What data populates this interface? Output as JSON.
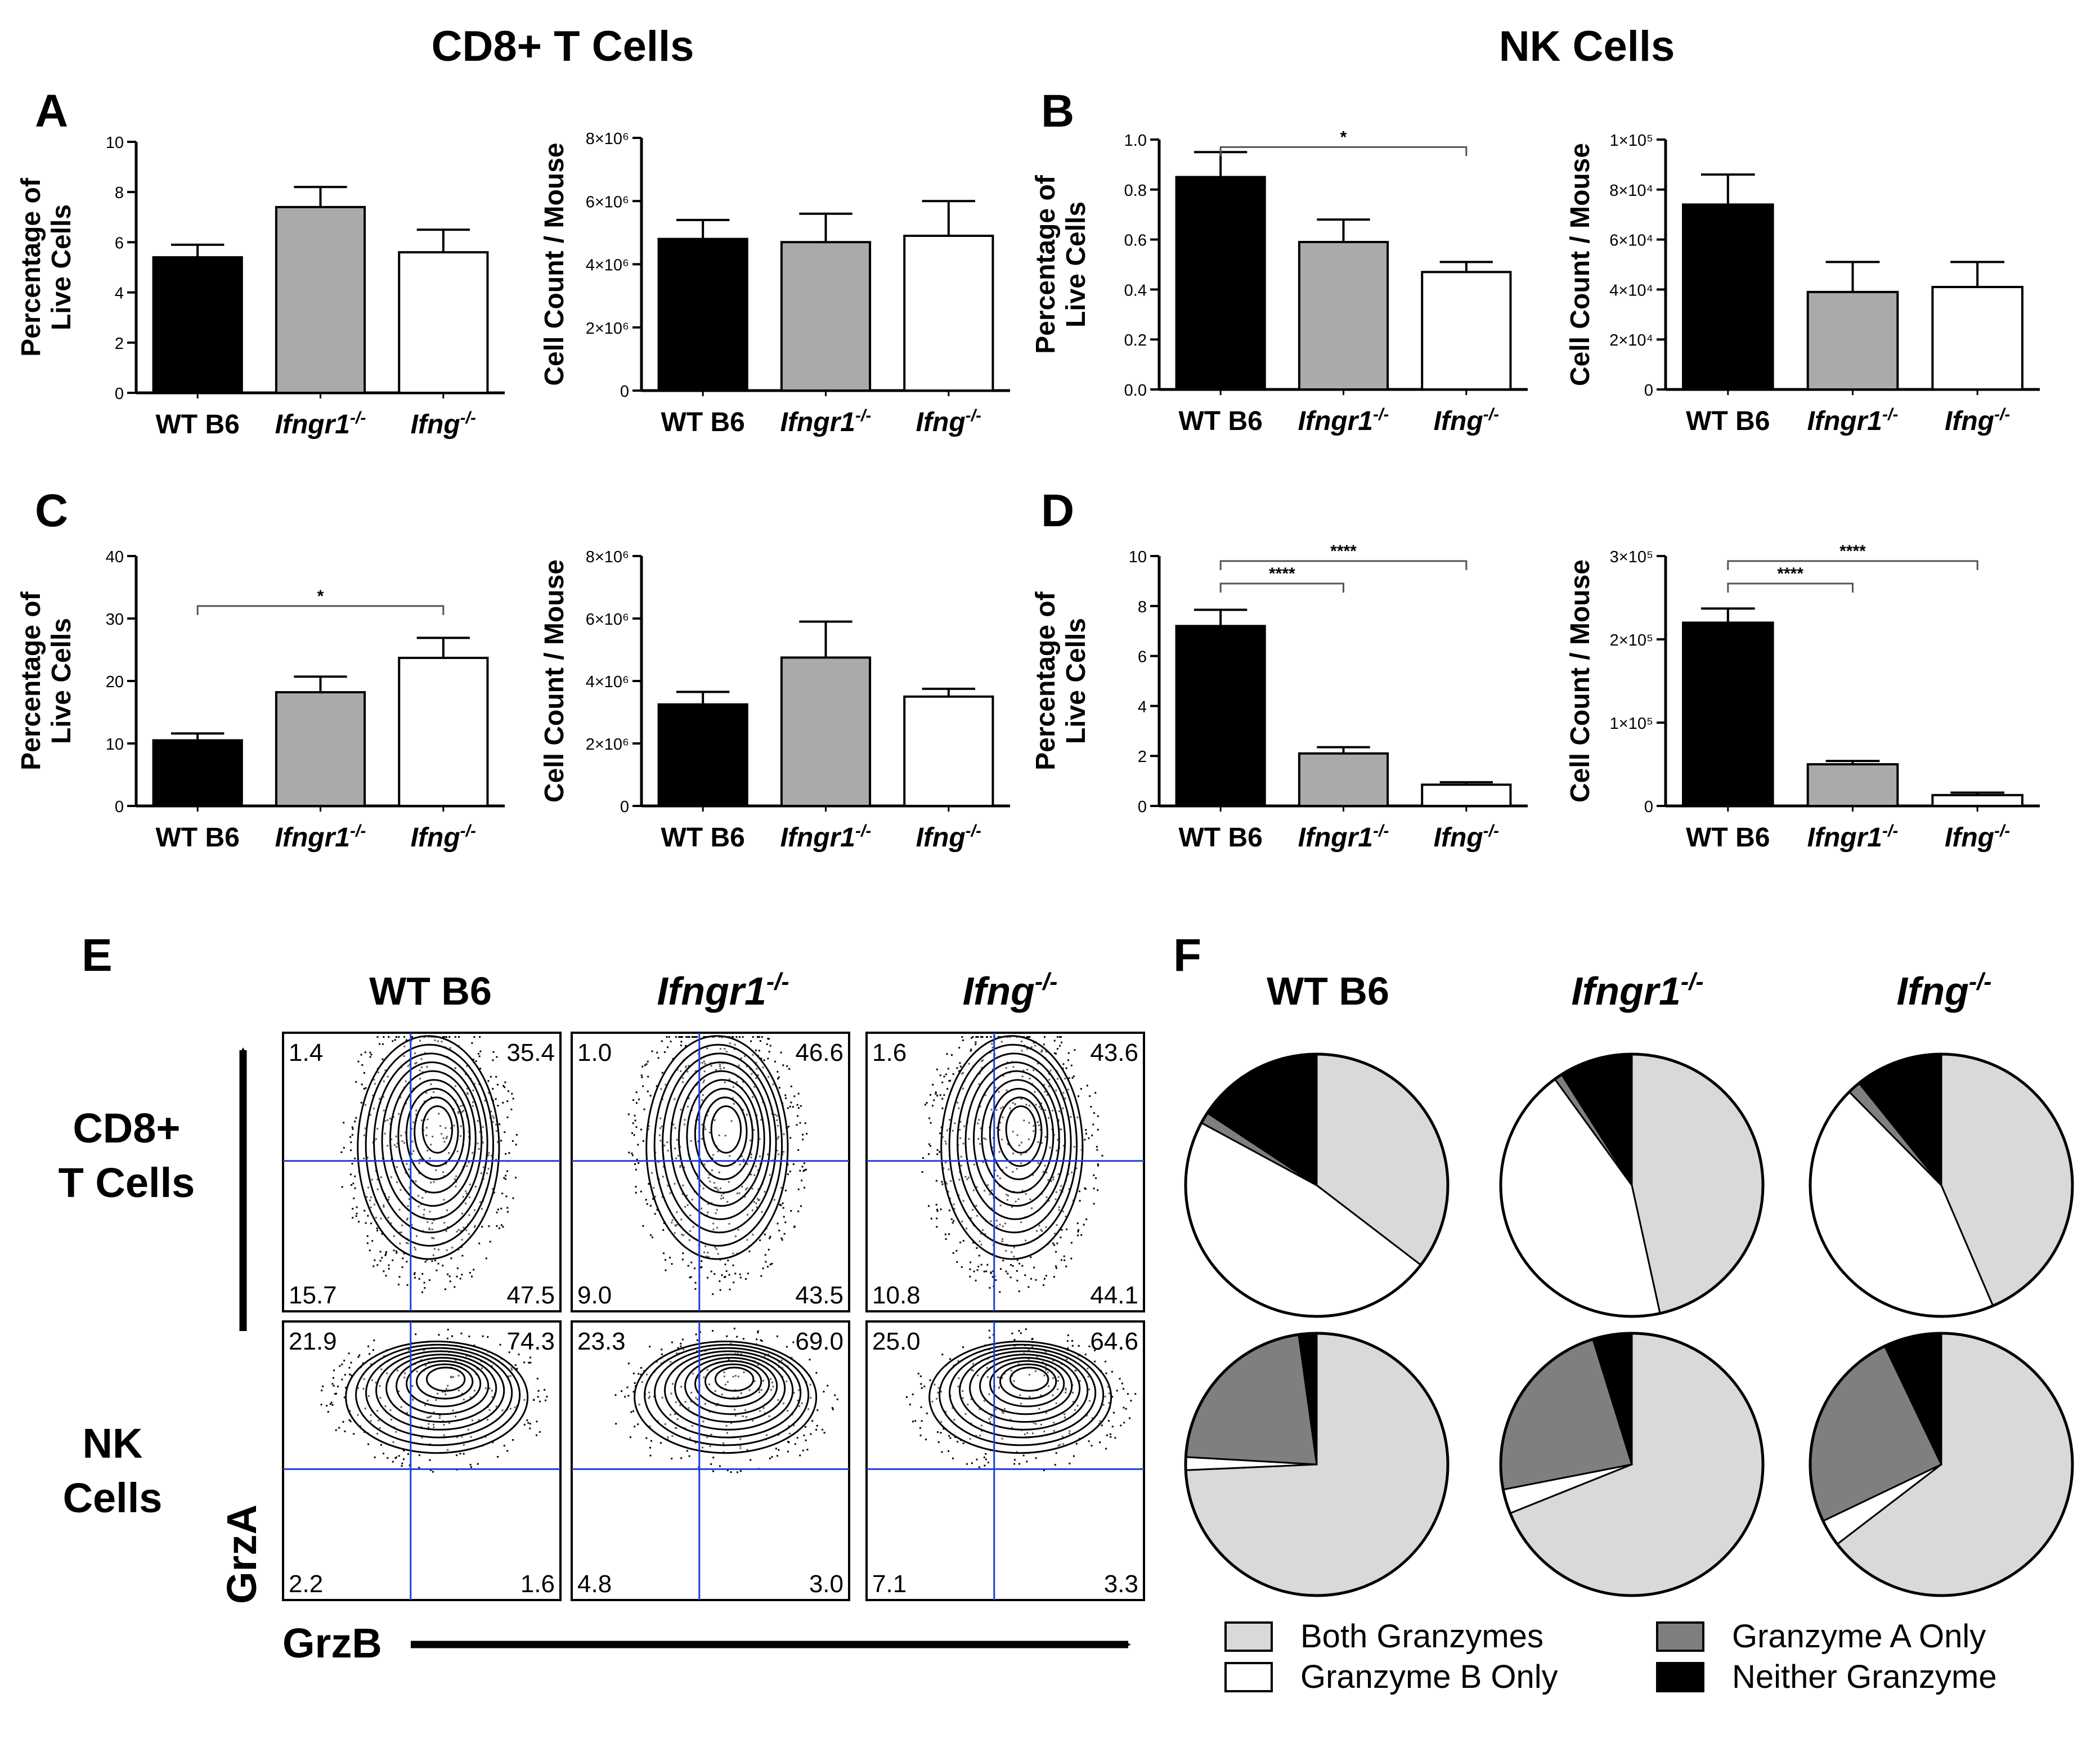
{
  "headers": {
    "cd8": "CD8+ T Cells",
    "nk": "NK Cells"
  },
  "genotypes": [
    "WT B6",
    "Ifngr1",
    "Ifng"
  ],
  "genotype_sup": "-/-",
  "chart_data": [
    {
      "panel": "A",
      "type": "bar",
      "cell_type": "CD8+ T Cells",
      "ylabel": [
        "Percentage of",
        "Live Cells"
      ],
      "categories": [
        "WT B6",
        "Ifngr1-/-",
        "Ifng-/-"
      ],
      "values": [
        5.4,
        7.4,
        5.6
      ],
      "errors": [
        0.5,
        0.8,
        0.9
      ],
      "ylim": [
        0,
        10
      ],
      "ticks": [
        "0",
        "2",
        "4",
        "6",
        "8",
        "10"
      ],
      "significance": []
    },
    {
      "panel": "A",
      "type": "bar",
      "cell_type": "CD8+ T Cells",
      "ylabel": [
        "Cell Count / Mouse"
      ],
      "categories": [
        "WT B6",
        "Ifngr1-/-",
        "Ifng-/-"
      ],
      "values": [
        4800000,
        4700000,
        4900000
      ],
      "errors": [
        600000,
        900000,
        1100000
      ],
      "ylim": [
        0,
        8000000
      ],
      "ticks": [
        "0",
        "2×10⁶",
        "4×10⁶",
        "6×10⁶",
        "8×10⁶"
      ],
      "significance": []
    },
    {
      "panel": "B",
      "type": "bar",
      "cell_type": "NK Cells",
      "ylabel": [
        "Percentage of",
        "Live Cells"
      ],
      "categories": [
        "WT B6",
        "Ifngr1-/-",
        "Ifng-/-"
      ],
      "values": [
        0.85,
        0.59,
        0.47
      ],
      "errors": [
        0.1,
        0.09,
        0.04
      ],
      "ylim": [
        0,
        1.0
      ],
      "ticks": [
        "0.0",
        "0.2",
        "0.4",
        "0.6",
        "0.8",
        "1.0"
      ],
      "significance": [
        {
          "from": 0,
          "to": 2,
          "label": "*",
          "y": 0.97
        }
      ]
    },
    {
      "panel": "B",
      "type": "bar",
      "cell_type": "NK Cells",
      "ylabel": [
        "Cell Count / Mouse"
      ],
      "categories": [
        "WT B6",
        "Ifngr1-/-",
        "Ifng-/-"
      ],
      "values": [
        74000,
        39000,
        41000
      ],
      "errors": [
        12000,
        12000,
        10000
      ],
      "ylim": [
        0,
        100000
      ],
      "ticks": [
        "0",
        "2×10⁴",
        "4×10⁴",
        "6×10⁴",
        "8×10⁴",
        "1×10⁵"
      ],
      "significance": []
    },
    {
      "panel": "C",
      "type": "bar",
      "cell_type": "CD8+ T Cells",
      "ylabel": [
        "Percentage of",
        "Live Cells"
      ],
      "categories": [
        "WT B6",
        "Ifngr1-/-",
        "Ifng-/-"
      ],
      "values": [
        10.5,
        18.2,
        23.7
      ],
      "errors": [
        1.1,
        2.5,
        3.2
      ],
      "ylim": [
        0,
        40
      ],
      "ticks": [
        "0",
        "10",
        "20",
        "30",
        "40"
      ],
      "significance": [
        {
          "from": 0,
          "to": 2,
          "label": "*",
          "y": 32
        }
      ]
    },
    {
      "panel": "C",
      "type": "bar",
      "cell_type": "CD8+ T Cells",
      "ylabel": [
        "Cell Count / Mouse"
      ],
      "categories": [
        "WT B6",
        "Ifngr1-/-",
        "Ifng-/-"
      ],
      "values": [
        3250000,
        4750000,
        3500000
      ],
      "errors": [
        400000,
        1150000,
        250000
      ],
      "ylim": [
        0,
        8000000
      ],
      "ticks": [
        "0",
        "2×10⁶",
        "4×10⁶",
        "6×10⁶",
        "8×10⁶"
      ],
      "significance": []
    },
    {
      "panel": "D",
      "type": "bar",
      "cell_type": "NK Cells",
      "ylabel": [
        "Percentage of",
        "Live Cells"
      ],
      "categories": [
        "WT B6",
        "Ifngr1-/-",
        "Ifng-/-"
      ],
      "values": [
        7.2,
        2.1,
        0.85
      ],
      "errors": [
        0.65,
        0.25,
        0.1
      ],
      "ylim": [
        0,
        10
      ],
      "ticks": [
        "0",
        "2",
        "4",
        "6",
        "8",
        "10"
      ],
      "significance": [
        {
          "from": 0,
          "to": 1,
          "label": "****",
          "y": 8.9
        },
        {
          "from": 0,
          "to": 2,
          "label": "****",
          "y": 9.8
        }
      ]
    },
    {
      "panel": "D",
      "type": "bar",
      "cell_type": "NK Cells",
      "ylabel": [
        "Cell Count / Mouse"
      ],
      "categories": [
        "WT B6",
        "Ifngr1-/-",
        "Ifng-/-"
      ],
      "values": [
        220000,
        50000,
        13000
      ],
      "errors": [
        17000,
        4000,
        3000
      ],
      "ylim": [
        0,
        300000
      ],
      "ticks": [
        "0",
        "1×10⁵",
        "2×10⁵",
        "3×10⁵"
      ],
      "significance": [
        {
          "from": 0,
          "to": 1,
          "label": "****",
          "y": 267000
        },
        {
          "from": 0,
          "to": 2,
          "label": "****",
          "y": 294000
        }
      ]
    },
    {
      "panel": "F",
      "type": "pie",
      "cell_type": "CD8+ T Cells",
      "genotype": "WT B6",
      "slices": [
        {
          "label": "Both Granzymes",
          "value": 35.4
        },
        {
          "label": "Granzyme B Only",
          "value": 47.5
        },
        {
          "label": "Granzyme A Only",
          "value": 1.4
        },
        {
          "label": "Neither Granzyme",
          "value": 15.7
        }
      ]
    },
    {
      "panel": "F",
      "type": "pie",
      "cell_type": "CD8+ T Cells",
      "genotype": "Ifngr1-/-",
      "slices": [
        {
          "label": "Both Granzymes",
          "value": 46.6
        },
        {
          "label": "Granzyme B Only",
          "value": 43.5
        },
        {
          "label": "Granzyme A Only",
          "value": 1.0
        },
        {
          "label": "Neither Granzyme",
          "value": 9.0
        }
      ]
    },
    {
      "panel": "F",
      "type": "pie",
      "cell_type": "CD8+ T Cells",
      "genotype": "Ifng-/-",
      "slices": [
        {
          "label": "Both Granzymes",
          "value": 43.6
        },
        {
          "label": "Granzyme B Only",
          "value": 44.1
        },
        {
          "label": "Granzyme A Only",
          "value": 1.6
        },
        {
          "label": "Neither Granzyme",
          "value": 10.8
        }
      ]
    },
    {
      "panel": "F",
      "type": "pie",
      "cell_type": "NK Cells",
      "genotype": "WT B6",
      "slices": [
        {
          "label": "Both Granzymes",
          "value": 74.3
        },
        {
          "label": "Granzyme B Only",
          "value": 1.6
        },
        {
          "label": "Granzyme A Only",
          "value": 21.9
        },
        {
          "label": "Neither Granzyme",
          "value": 2.2
        }
      ]
    },
    {
      "panel": "F",
      "type": "pie",
      "cell_type": "NK Cells",
      "genotype": "Ifngr1-/-",
      "slices": [
        {
          "label": "Both Granzymes",
          "value": 69.0
        },
        {
          "label": "Granzyme B Only",
          "value": 3.0
        },
        {
          "label": "Granzyme A Only",
          "value": 23.3
        },
        {
          "label": "Neither Granzyme",
          "value": 4.8
        }
      ]
    },
    {
      "panel": "F",
      "type": "pie",
      "cell_type": "NK Cells",
      "genotype": "Ifng-/-",
      "slices": [
        {
          "label": "Both Granzymes",
          "value": 64.6
        },
        {
          "label": "Granzyme B Only",
          "value": 3.3
        },
        {
          "label": "Granzyme A Only",
          "value": 25.0
        },
        {
          "label": "Neither Granzyme",
          "value": 7.1
        }
      ]
    }
  ],
  "flow": {
    "x_axis_label": "GrzB",
    "y_axis_label": "GrzA",
    "row_labels": [
      [
        "CD8+",
        "T Cells"
      ],
      [
        "NK",
        "Cells"
      ]
    ],
    "plots": [
      {
        "row": 0,
        "col": 0,
        "ul": "1.4",
        "ur": "35.4",
        "ll": "15.7",
        "lr": "47.5"
      },
      {
        "row": 0,
        "col": 1,
        "ul": "1.0",
        "ur": "46.6",
        "ll": "9.0",
        "lr": "43.5"
      },
      {
        "row": 0,
        "col": 2,
        "ul": "1.6",
        "ur": "43.6",
        "ll": "10.8",
        "lr": "44.1"
      },
      {
        "row": 1,
        "col": 0,
        "ul": "21.9",
        "ur": "74.3",
        "ll": "2.2",
        "lr": "1.6"
      },
      {
        "row": 1,
        "col": 1,
        "ul": "23.3",
        "ur": "69.0",
        "ll": "4.8",
        "lr": "3.0"
      },
      {
        "row": 1,
        "col": 2,
        "ul": "25.0",
        "ur": "64.6",
        "ll": "7.1",
        "lr": "3.3"
      }
    ]
  },
  "legend": [
    {
      "label": "Both Granzymes",
      "color": "#d9d9d9"
    },
    {
      "label": "Granzyme B Only",
      "color": "#ffffff"
    },
    {
      "label": "Granzyme A Only",
      "color": "#7f7f7f"
    },
    {
      "label": "Neither Granzyme",
      "color": "#000000"
    }
  ],
  "colors": {
    "bars": [
      "#000000",
      "#aaaaaa",
      "#ffffff"
    ],
    "gate": "#1f3fd6",
    "axis": "#000000"
  }
}
